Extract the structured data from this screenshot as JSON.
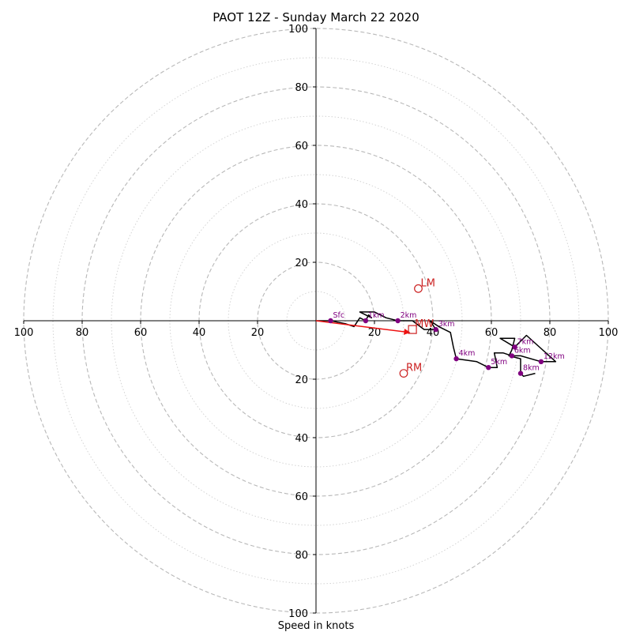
{
  "chart_data": {
    "type": "line",
    "title": "PAOT 12Z - Sunday March 22 2020",
    "xlabel": "Speed in knots",
    "ylabel": "",
    "xlim": [
      -100,
      100
    ],
    "ylim": [
      -100,
      100
    ],
    "ring_spacing": 10,
    "labeled_rings": [
      20,
      40,
      60,
      80,
      100
    ],
    "x_tick_labels": [
      "100",
      "80",
      "60",
      "40",
      "20",
      "20",
      "40",
      "60",
      "80",
      "100"
    ],
    "x_tick_values": [
      -100,
      -80,
      -60,
      -40,
      -20,
      20,
      40,
      60,
      80,
      100
    ],
    "y_tick_labels": [
      "100",
      "80",
      "60",
      "40",
      "20",
      "20",
      "40",
      "60",
      "80",
      "100"
    ],
    "y_tick_values": [
      100,
      80,
      60,
      40,
      20,
      -20,
      -40,
      -60,
      -80,
      -100
    ],
    "hodograph": {
      "color": "#000000",
      "points": [
        [
          0,
          0
        ],
        [
          5,
          0
        ],
        [
          10,
          -1
        ],
        [
          13,
          -2
        ],
        [
          15,
          1
        ],
        [
          17,
          0
        ],
        [
          18,
          2
        ],
        [
          19,
          1
        ],
        [
          15,
          3
        ],
        [
          20,
          3
        ],
        [
          24,
          1
        ],
        [
          28,
          0
        ],
        [
          33,
          0
        ],
        [
          37,
          -3
        ],
        [
          41,
          -3
        ],
        [
          39,
          0
        ],
        [
          42,
          -2
        ],
        [
          46,
          -4
        ],
        [
          47,
          -9
        ],
        [
          48,
          -13
        ],
        [
          55,
          -14
        ],
        [
          59,
          -16
        ],
        [
          62,
          -16
        ],
        [
          61,
          -11
        ],
        [
          64,
          -11
        ],
        [
          67,
          -12
        ],
        [
          70,
          -12
        ],
        [
          77,
          -14
        ],
        [
          82,
          -14
        ],
        [
          72,
          -5
        ],
        [
          68,
          -9
        ],
        [
          63,
          -6
        ],
        [
          68,
          -6
        ],
        [
          67,
          -10
        ],
        [
          66,
          -12
        ],
        [
          70,
          -13
        ],
        [
          70,
          -18
        ],
        [
          71,
          -19
        ],
        [
          75,
          -18
        ]
      ]
    },
    "height_labels": [
      {
        "label": "Sfc",
        "x": 5,
        "y": 0
      },
      {
        "label": "1km",
        "x": 17,
        "y": 0
      },
      {
        "label": "2km",
        "x": 28,
        "y": 0
      },
      {
        "label": "3km",
        "x": 41,
        "y": -3
      },
      {
        "label": "4km",
        "x": 48,
        "y": -13
      },
      {
        "label": "5km",
        "x": 59,
        "y": -16
      },
      {
        "label": "6km",
        "x": 67,
        "y": -12
      },
      {
        "label": "7km",
        "x": 68,
        "y": -9
      },
      {
        "label": "8km",
        "x": 70,
        "y": -18
      },
      {
        "label": "12km",
        "x": 77,
        "y": -14
      }
    ],
    "marker_color": "#800080",
    "storm_motions": [
      {
        "label": "LM",
        "x": 35,
        "y": 11,
        "shape": "circle"
      },
      {
        "label": "MW",
        "x": 33,
        "y": -3,
        "shape": "square"
      },
      {
        "label": "RM",
        "x": 30,
        "y": -18,
        "shape": "circle"
      }
    ],
    "storm_color": "#cc2222",
    "motion_vector": {
      "from": [
        0,
        0
      ],
      "to": [
        32,
        -4
      ],
      "color": "#ee1111"
    },
    "grid": true
  }
}
